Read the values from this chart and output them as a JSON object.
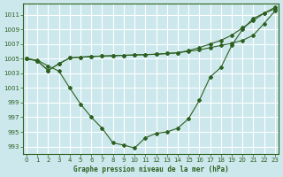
{
  "title": "Graphe pression niveau de la mer (hPa)",
  "bg_color": "#cce8ec",
  "grid_color": "#ffffff",
  "line_color": "#2d6020",
  "x_ticks": [
    0,
    1,
    2,
    3,
    4,
    5,
    6,
    7,
    8,
    9,
    10,
    11,
    12,
    13,
    14,
    15,
    16,
    17,
    18,
    19,
    20,
    21,
    22,
    23
  ],
  "y_ticks": [
    993,
    995,
    997,
    999,
    1001,
    1003,
    1005,
    1007,
    1009,
    1011
  ],
  "ylim": [
    992.0,
    1012.5
  ],
  "xlim": [
    -0.3,
    23.3
  ],
  "series1_x": [
    0,
    1,
    2,
    3,
    4,
    5,
    6,
    7,
    8,
    9,
    10,
    11,
    12,
    13,
    14,
    15,
    16,
    17,
    18,
    19,
    20,
    21,
    22,
    23
  ],
  "series1_y": [
    1005.0,
    1004.8,
    1004.0,
    1003.3,
    1001.0,
    998.8,
    997.0,
    995.5,
    993.5,
    993.2,
    992.8,
    994.2,
    994.8,
    995.0,
    995.5,
    996.8,
    999.3,
    1002.5,
    1003.8,
    1006.8,
    1009.0,
    1010.5,
    1011.2,
    1011.8
  ],
  "series2_x": [
    0,
    1,
    2,
    3,
    4,
    5,
    6,
    7,
    8,
    9,
    10,
    11,
    12,
    13,
    14,
    15,
    16,
    17,
    18,
    19,
    20,
    21,
    22,
    23
  ],
  "series2_y": [
    1005.0,
    1004.7,
    1003.4,
    1004.3,
    1005.1,
    1005.2,
    1005.3,
    1005.35,
    1005.4,
    1005.45,
    1005.5,
    1005.55,
    1005.6,
    1005.7,
    1005.8,
    1006.0,
    1006.2,
    1006.5,
    1006.8,
    1007.1,
    1007.5,
    1008.2,
    1009.8,
    1011.5
  ],
  "series3_x": [
    0,
    1,
    2,
    3,
    4,
    5,
    6,
    7,
    8,
    9,
    10,
    11,
    12,
    13,
    14,
    15,
    16,
    17,
    18,
    19,
    20,
    21,
    22,
    23
  ],
  "series3_y": [
    1005.0,
    1004.7,
    1003.4,
    1004.3,
    1005.1,
    1005.2,
    1005.3,
    1005.35,
    1005.4,
    1005.45,
    1005.5,
    1005.55,
    1005.6,
    1005.7,
    1005.8,
    1006.1,
    1006.5,
    1007.0,
    1007.5,
    1008.2,
    1009.2,
    1010.2,
    1011.2,
    1012.0
  ]
}
